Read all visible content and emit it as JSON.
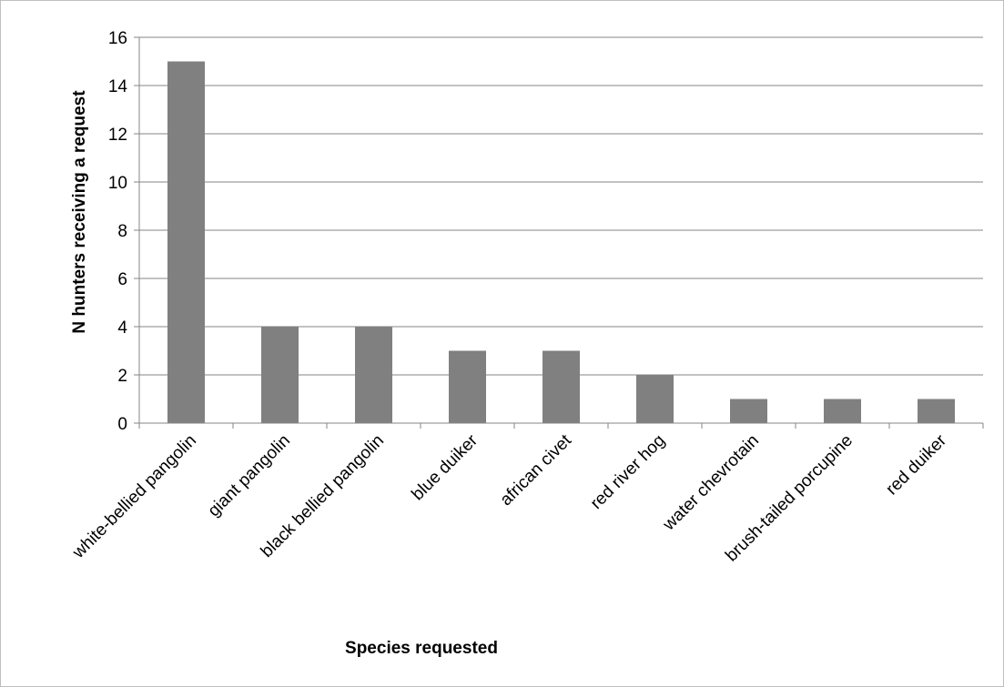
{
  "chart_data": {
    "type": "bar",
    "title": "",
    "xlabel": "Species requested",
    "ylabel": "N hunters receiving a request",
    "categories": [
      "white-bellied pangolin",
      "giant pangolin",
      "black bellied pangolin",
      "blue duiker",
      "african civet",
      "red river hog",
      "water chevrotain",
      "brush-tailed porcupine",
      "red duiker"
    ],
    "values": [
      15,
      4,
      4,
      3,
      3,
      2,
      1,
      1,
      1
    ],
    "ylim": [
      0,
      16
    ],
    "yticks": [
      0,
      2,
      4,
      6,
      8,
      10,
      12,
      14,
      16
    ],
    "grid": true,
    "legend": "none",
    "bar_color": "#808080",
    "grid_color": "#868686"
  }
}
